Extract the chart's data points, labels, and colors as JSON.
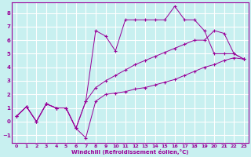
{
  "title": "",
  "xlabel": "Windchill (Refroidissement éolien,°C)",
  "bg_color": "#c8f0f0",
  "line_color": "#990099",
  "grid_color": "#ffffff",
  "xlim": [
    -0.5,
    23.5
  ],
  "ylim": [
    -1.6,
    8.8
  ],
  "xticks": [
    0,
    1,
    2,
    3,
    4,
    5,
    6,
    7,
    8,
    9,
    10,
    11,
    12,
    13,
    14,
    15,
    16,
    17,
    18,
    19,
    20,
    21,
    22,
    23
  ],
  "yticks": [
    -1,
    0,
    1,
    2,
    3,
    4,
    5,
    6,
    7,
    8
  ],
  "line1_x": [
    0,
    1,
    2,
    3,
    4,
    5,
    6,
    7,
    8,
    9,
    10,
    11,
    12,
    13,
    14,
    15,
    16,
    17,
    18,
    19,
    20,
    21,
    22,
    23
  ],
  "line1_y": [
    0.4,
    1.1,
    0.0,
    1.3,
    1.0,
    1.0,
    -0.5,
    -1.2,
    1.5,
    2.0,
    2.1,
    2.2,
    2.4,
    2.5,
    2.7,
    2.9,
    3.1,
    3.4,
    3.7,
    4.0,
    4.2,
    4.5,
    4.7,
    4.6
  ],
  "line2_x": [
    0,
    1,
    2,
    3,
    4,
    5,
    6,
    7,
    8,
    9,
    10,
    11,
    12,
    13,
    14,
    15,
    16,
    17,
    18,
    19,
    20,
    21,
    22,
    23
  ],
  "line2_y": [
    0.4,
    1.1,
    0.0,
    1.3,
    1.0,
    1.0,
    -0.5,
    1.5,
    6.7,
    6.3,
    5.2,
    7.5,
    7.5,
    7.5,
    7.5,
    7.5,
    8.5,
    7.5,
    7.5,
    6.7,
    5.0,
    5.0,
    5.0,
    4.6
  ],
  "line3_x": [
    0,
    1,
    2,
    3,
    4,
    5,
    6,
    7,
    8,
    9,
    10,
    11,
    12,
    13,
    14,
    15,
    16,
    17,
    18,
    19,
    20,
    21,
    22,
    23
  ],
  "line3_y": [
    0.4,
    1.1,
    0.0,
    1.3,
    1.0,
    1.0,
    -0.5,
    1.5,
    2.5,
    3.0,
    3.4,
    3.8,
    4.2,
    4.5,
    4.8,
    5.1,
    5.4,
    5.7,
    6.0,
    6.0,
    6.7,
    6.5,
    5.0,
    4.6
  ]
}
